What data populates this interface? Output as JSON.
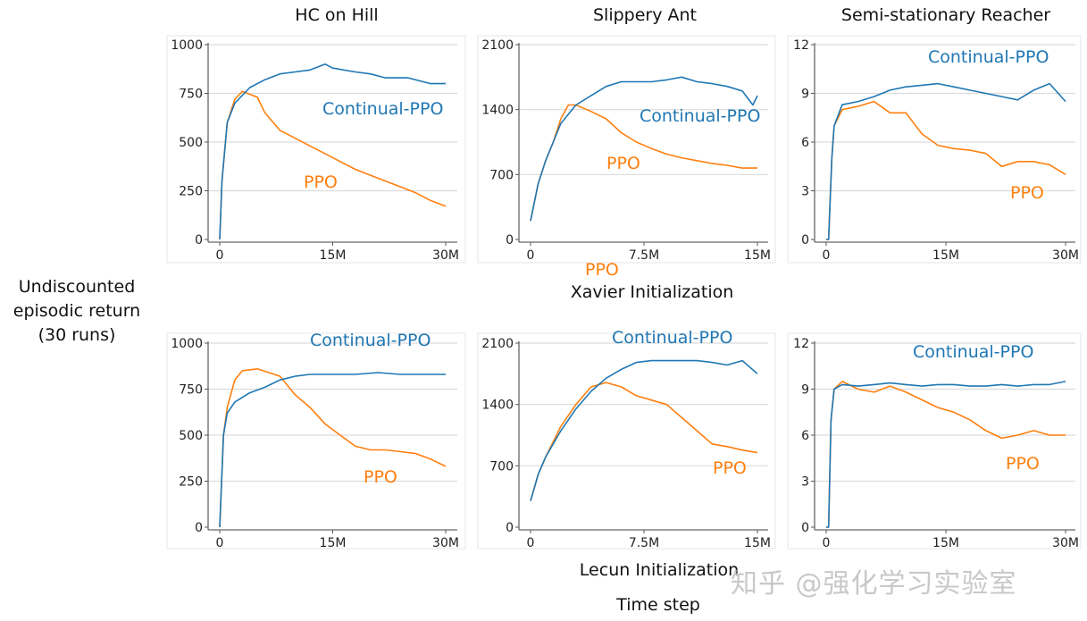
{
  "ylabel": "Undiscounted episodic return (30 runs)",
  "ylabel_lines": [
    "Undiscounted",
    "episodic return",
    "(30 runs)"
  ],
  "xlabel": "Time step",
  "row_labels": [
    "Xavier Initialization",
    "Lecun Initialization"
  ],
  "column_titles": [
    "HC on Hill",
    "Slippery Ant",
    "Semi-stationary Reacher"
  ],
  "watermark": "知乎 @强化学习实验室",
  "colors": {
    "Continual-PPO": "#1f77b4",
    "PPO": "#ff7f0e"
  },
  "stray_label": "PPO",
  "chart_data": [
    {
      "type": "line",
      "title": "HC on Hill",
      "row": "Xavier Initialization",
      "xlim": [
        0,
        30
      ],
      "ylim": [
        0,
        1000
      ],
      "xticks": [
        0,
        15,
        30
      ],
      "xtick_labels": [
        "0",
        "15M",
        "30M"
      ],
      "yticks": [
        0,
        250,
        500,
        750,
        1000
      ],
      "grid": "horizontal",
      "series": [
        {
          "name": "Continual-PPO",
          "x": [
            0,
            0.3,
            1,
            2,
            4,
            6,
            8,
            10,
            12,
            14,
            15,
            18,
            20,
            22,
            25,
            28,
            30
          ],
          "y": [
            0,
            300,
            600,
            700,
            780,
            820,
            850,
            860,
            870,
            900,
            880,
            860,
            850,
            830,
            830,
            800,
            800
          ]
        },
        {
          "name": "PPO",
          "x": [
            0,
            0.3,
            1,
            2,
            3,
            5,
            6,
            8,
            10,
            12,
            14,
            16,
            18,
            20,
            22,
            24,
            26,
            28,
            30
          ],
          "y": [
            0,
            300,
            600,
            720,
            760,
            730,
            650,
            560,
            520,
            480,
            440,
            400,
            360,
            330,
            300,
            270,
            240,
            200,
            170
          ]
        }
      ]
    },
    {
      "type": "line",
      "title": "Slippery Ant",
      "row": "Xavier Initialization",
      "xlim": [
        0,
        15
      ],
      "ylim": [
        0,
        2100
      ],
      "xticks": [
        0,
        7.5,
        15
      ],
      "xtick_labels": [
        "0",
        "7.5M",
        "15M"
      ],
      "yticks": [
        0,
        700,
        1400,
        2100
      ],
      "grid": "horizontal",
      "series": [
        {
          "name": "Continual-PPO",
          "x": [
            0,
            0.5,
            1,
            1.5,
            2,
            3,
            4,
            5,
            6,
            7,
            8,
            9,
            10,
            11,
            12,
            13,
            14,
            14.7,
            15
          ],
          "y": [
            200,
            600,
            850,
            1050,
            1250,
            1450,
            1550,
            1650,
            1700,
            1700,
            1700,
            1720,
            1750,
            1700,
            1680,
            1650,
            1600,
            1450,
            1550
          ]
        },
        {
          "name": "PPO",
          "x": [
            0,
            0.5,
            1,
            1.5,
            2,
            2.5,
            3,
            4,
            5,
            6,
            7,
            8,
            9,
            10,
            11,
            12,
            13,
            14,
            15
          ],
          "y": [
            200,
            600,
            850,
            1050,
            1300,
            1450,
            1450,
            1380,
            1300,
            1150,
            1050,
            980,
            920,
            880,
            850,
            820,
            800,
            770,
            770
          ]
        }
      ]
    },
    {
      "type": "line",
      "title": "Semi-stationary Reacher",
      "row": "Xavier Initialization",
      "xlim": [
        0,
        30
      ],
      "ylim": [
        0,
        12
      ],
      "xticks": [
        0,
        15,
        30
      ],
      "xtick_labels": [
        "0",
        "15M",
        "30M"
      ],
      "yticks": [
        0,
        3,
        6,
        9,
        12
      ],
      "grid": "horizontal",
      "series": [
        {
          "name": "Continual-PPO",
          "x": [
            0,
            0.3,
            0.7,
            1,
            2,
            4,
            6,
            8,
            10,
            12,
            14,
            16,
            18,
            20,
            22,
            24,
            26,
            28,
            30
          ],
          "y": [
            0,
            0,
            5,
            7,
            8.3,
            8.5,
            8.8,
            9.2,
            9.4,
            9.5,
            9.6,
            9.4,
            9.2,
            9,
            8.8,
            8.6,
            9.2,
            9.6,
            8.5
          ]
        },
        {
          "name": "PPO",
          "x": [
            0,
            0.3,
            0.7,
            1,
            2,
            4,
            6,
            8,
            10,
            12,
            14,
            16,
            18,
            20,
            22,
            24,
            26,
            28,
            30
          ],
          "y": [
            0,
            0,
            5,
            7,
            8,
            8.2,
            8.5,
            7.8,
            7.8,
            6.5,
            5.8,
            5.6,
            5.5,
            5.3,
            4.5,
            4.8,
            4.8,
            4.6,
            4
          ]
        }
      ]
    },
    {
      "type": "line",
      "title": "HC on Hill",
      "row": "Lecun Initialization",
      "xlim": [
        0,
        30
      ],
      "ylim": [
        0,
        1000
      ],
      "xticks": [
        0,
        15,
        30
      ],
      "xtick_labels": [
        "0",
        "15M",
        "30M"
      ],
      "yticks": [
        0,
        250,
        500,
        750,
        1000
      ],
      "grid": "horizontal",
      "series": [
        {
          "name": "Continual-PPO",
          "x": [
            0,
            0.5,
            1,
            2,
            4,
            6,
            8,
            10,
            12,
            15,
            18,
            21,
            24,
            27,
            30
          ],
          "y": [
            0,
            500,
            620,
            680,
            730,
            760,
            800,
            820,
            830,
            830,
            830,
            840,
            830,
            830,
            830
          ]
        },
        {
          "name": "PPO",
          "x": [
            0,
            0.5,
            1,
            2,
            3,
            5,
            8,
            10,
            12,
            14,
            16,
            18,
            20,
            22,
            24,
            26,
            28,
            30
          ],
          "y": [
            0,
            500,
            650,
            800,
            850,
            860,
            820,
            720,
            650,
            560,
            500,
            440,
            420,
            420,
            410,
            400,
            370,
            330
          ]
        }
      ]
    },
    {
      "type": "line",
      "title": "Slippery Ant",
      "row": "Lecun Initialization",
      "xlim": [
        0,
        15
      ],
      "ylim": [
        0,
        2100
      ],
      "xticks": [
        0,
        7.5,
        15
      ],
      "xtick_labels": [
        "0",
        "7.5M",
        "15M"
      ],
      "yticks": [
        0,
        700,
        1400,
        2100
      ],
      "grid": "horizontal",
      "series": [
        {
          "name": "Continual-PPO",
          "x": [
            0,
            0.5,
            1,
            2,
            3,
            4,
            5,
            6,
            7,
            8,
            9,
            10,
            11,
            12,
            13,
            14,
            15
          ],
          "y": [
            300,
            600,
            800,
            1100,
            1350,
            1550,
            1700,
            1800,
            1880,
            1900,
            1900,
            1900,
            1900,
            1880,
            1850,
            1900,
            1750
          ]
        },
        {
          "name": "PPO",
          "x": [
            0,
            0.5,
            1,
            2,
            3,
            4,
            5,
            6,
            7,
            8,
            9,
            10,
            11,
            12,
            13,
            14,
            15
          ],
          "y": [
            300,
            600,
            800,
            1150,
            1400,
            1600,
            1650,
            1600,
            1500,
            1450,
            1400,
            1250,
            1100,
            950,
            920,
            880,
            850
          ]
        }
      ]
    },
    {
      "type": "line",
      "title": "Semi-stationary Reacher",
      "row": "Lecun Initialization",
      "xlim": [
        0,
        30
      ],
      "ylim": [
        0,
        12
      ],
      "xticks": [
        0,
        15,
        30
      ],
      "xtick_labels": [
        "0",
        "15M",
        "30M"
      ],
      "yticks": [
        0,
        3,
        6,
        9,
        12
      ],
      "grid": "horizontal",
      "series": [
        {
          "name": "Continual-PPO",
          "x": [
            0,
            0.3,
            0.6,
            1,
            2,
            4,
            6,
            8,
            10,
            12,
            14,
            16,
            18,
            20,
            22,
            24,
            26,
            28,
            30
          ],
          "y": [
            0,
            0,
            7,
            9,
            9.3,
            9.2,
            9.3,
            9.4,
            9.3,
            9.2,
            9.3,
            9.3,
            9.2,
            9.2,
            9.3,
            9.2,
            9.3,
            9.3,
            9.5
          ]
        },
        {
          "name": "PPO",
          "x": [
            0,
            0.3,
            0.6,
            1,
            2,
            4,
            6,
            8,
            10,
            12,
            14,
            16,
            18,
            20,
            22,
            24,
            26,
            28,
            30
          ],
          "y": [
            0,
            0,
            7,
            9,
            9.5,
            9,
            8.8,
            9.2,
            8.8,
            8.3,
            7.8,
            7.5,
            7,
            6.3,
            5.8,
            6,
            6.3,
            6,
            6
          ]
        }
      ]
    }
  ]
}
